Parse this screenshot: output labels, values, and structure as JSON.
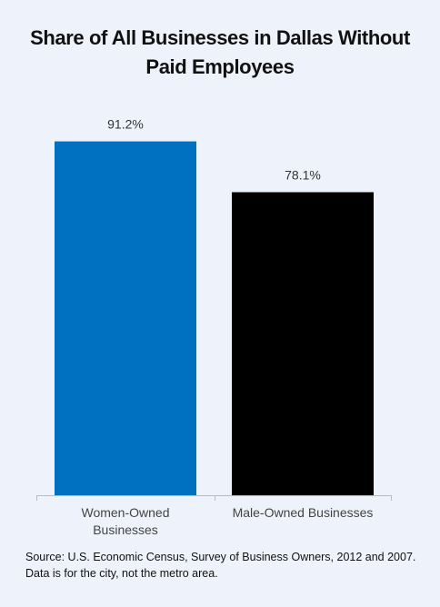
{
  "chart_data": {
    "type": "bar",
    "title": "Share of All Businesses in Dallas Without Paid Employees",
    "categories": [
      "Women-Owned Businesses",
      "Male-Owned Businesses"
    ],
    "values": [
      91.2,
      78.1
    ],
    "value_labels": [
      "91.2%",
      "78.1%"
    ],
    "colors": [
      "#0070c0",
      "#000000"
    ],
    "ylim": [
      0,
      100
    ],
    "source": "Source: U.S. Economic Census, Survey of Business Owners, 2012 and 2007. Data is for the city, not the metro area."
  }
}
